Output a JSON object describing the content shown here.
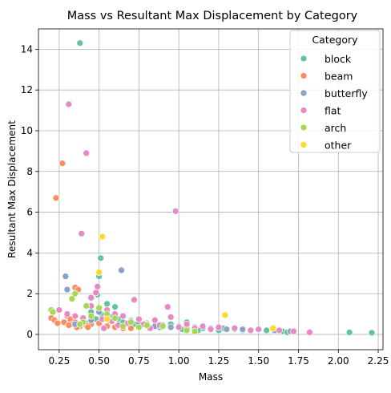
{
  "chart_data": {
    "type": "scatter",
    "title": "Mass vs Resultant Max Displacement by Category",
    "xlabel": "Mass",
    "ylabel": "Resultant Max Displacement",
    "xlim": [
      0.12,
      2.28
    ],
    "ylim": [
      -0.75,
      15.0
    ],
    "xticks": [
      0.25,
      0.5,
      0.75,
      1.0,
      1.25,
      1.5,
      1.75,
      2.0,
      2.25
    ],
    "xtick_labels": [
      "0.25",
      "0.50",
      "0.75",
      "1.00",
      "1.25",
      "1.50",
      "1.75",
      "2.00",
      "2.25"
    ],
    "yticks": [
      0,
      2,
      4,
      6,
      8,
      10,
      12,
      14
    ],
    "ytick_labels": [
      "0",
      "2",
      "4",
      "6",
      "8",
      "10",
      "12",
      "14"
    ],
    "grid": true,
    "legend": {
      "title": "Category",
      "placement": "top-right"
    },
    "series": [
      {
        "name": "block",
        "color": "#66c2a5",
        "points": [
          [
            0.38,
            14.3
          ],
          [
            0.51,
            3.75
          ],
          [
            0.5,
            2.85
          ],
          [
            0.49,
            1.95
          ],
          [
            0.55,
            1.5
          ],
          [
            0.6,
            1.35
          ],
          [
            0.45,
            1.1
          ],
          [
            0.52,
            0.95
          ],
          [
            0.58,
            0.85
          ],
          [
            0.62,
            0.75
          ],
          [
            0.7,
            0.7
          ],
          [
            0.75,
            0.6
          ],
          [
            0.8,
            0.55
          ],
          [
            0.85,
            0.45
          ],
          [
            0.9,
            0.4
          ],
          [
            0.95,
            0.5
          ],
          [
            1.0,
            0.4
          ],
          [
            1.05,
            0.6
          ],
          [
            1.1,
            0.3
          ],
          [
            1.15,
            0.3
          ],
          [
            1.2,
            0.25
          ],
          [
            1.28,
            0.3
          ],
          [
            1.35,
            0.25
          ],
          [
            1.4,
            0.2
          ],
          [
            1.45,
            0.2
          ],
          [
            1.55,
            0.2
          ],
          [
            1.6,
            0.15
          ],
          [
            1.65,
            0.15
          ],
          [
            1.68,
            0.1
          ],
          [
            2.07,
            0.1
          ],
          [
            2.21,
            0.08
          ],
          [
            0.35,
            0.6
          ],
          [
            0.42,
            0.55
          ],
          [
            0.65,
            0.6
          ],
          [
            0.72,
            0.5
          ],
          [
            0.88,
            0.35
          ],
          [
            1.02,
            0.25
          ],
          [
            1.12,
            0.2
          ],
          [
            1.25,
            0.2
          ],
          [
            0.48,
            0.75
          ],
          [
            0.57,
            0.65
          ]
        ]
      },
      {
        "name": "beam",
        "color": "#fc8d62",
        "points": [
          [
            0.27,
            8.4
          ],
          [
            0.23,
            6.7
          ],
          [
            0.35,
            2.3
          ],
          [
            0.37,
            2.2
          ],
          [
            0.25,
            1.2
          ],
          [
            0.3,
            0.9
          ],
          [
            0.32,
            0.75
          ],
          [
            0.35,
            0.6
          ],
          [
            0.4,
            0.5
          ],
          [
            0.42,
            0.45
          ],
          [
            0.45,
            0.5
          ],
          [
            0.5,
            0.55
          ],
          [
            0.2,
            0.8
          ],
          [
            0.22,
            0.7
          ],
          [
            0.28,
            0.6
          ],
          [
            0.33,
            0.5
          ],
          [
            0.38,
            0.4
          ],
          [
            0.43,
            0.35
          ],
          [
            0.55,
            0.4
          ],
          [
            0.6,
            0.35
          ],
          [
            0.65,
            0.3
          ],
          [
            0.7,
            0.3
          ],
          [
            0.24,
            0.55
          ],
          [
            0.31,
            0.45
          ],
          [
            0.36,
            0.35
          ]
        ]
      },
      {
        "name": "butterfly",
        "color": "#8da0cb",
        "points": [
          [
            0.29,
            2.85
          ],
          [
            0.3,
            2.2
          ],
          [
            0.64,
            3.15
          ],
          [
            0.5,
            1.1
          ],
          [
            0.55,
            0.9
          ],
          [
            0.6,
            0.8
          ],
          [
            0.7,
            0.65
          ],
          [
            0.8,
            0.5
          ],
          [
            0.9,
            0.45
          ],
          [
            1.0,
            0.4
          ],
          [
            1.1,
            0.35
          ],
          [
            1.2,
            0.3
          ],
          [
            1.4,
            0.25
          ],
          [
            1.6,
            0.2
          ],
          [
            1.7,
            0.15
          ],
          [
            0.45,
            0.7
          ],
          [
            0.35,
            0.5
          ],
          [
            0.75,
            0.55
          ],
          [
            0.85,
            0.4
          ],
          [
            0.95,
            0.35
          ],
          [
            1.05,
            0.3
          ],
          [
            1.3,
            0.25
          ],
          [
            0.4,
            0.6
          ]
        ]
      },
      {
        "name": "flat",
        "color": "#e78ac3",
        "points": [
          [
            0.31,
            11.3
          ],
          [
            0.42,
            8.9
          ],
          [
            0.39,
            4.95
          ],
          [
            0.98,
            6.05
          ],
          [
            0.48,
            2.05
          ],
          [
            0.49,
            2.35
          ],
          [
            0.45,
            1.8
          ],
          [
            0.72,
            1.7
          ],
          [
            0.93,
            1.35
          ],
          [
            0.55,
            1.2
          ],
          [
            0.6,
            1.0
          ],
          [
            0.65,
            0.9
          ],
          [
            0.75,
            0.75
          ],
          [
            0.85,
            0.7
          ],
          [
            0.95,
            0.85
          ],
          [
            1.05,
            0.5
          ],
          [
            1.15,
            0.4
          ],
          [
            1.25,
            0.35
          ],
          [
            1.35,
            0.3
          ],
          [
            1.5,
            0.25
          ],
          [
            1.63,
            0.2
          ],
          [
            1.72,
            0.15
          ],
          [
            1.82,
            0.1
          ],
          [
            0.25,
            1.2
          ],
          [
            0.3,
            1.0
          ],
          [
            0.35,
            0.9
          ],
          [
            0.4,
            0.8
          ],
          [
            0.52,
            0.75
          ],
          [
            0.58,
            0.65
          ],
          [
            0.68,
            0.55
          ],
          [
            0.78,
            0.5
          ],
          [
            0.88,
            0.45
          ],
          [
            1.0,
            0.35
          ],
          [
            1.1,
            0.3
          ],
          [
            1.2,
            0.25
          ],
          [
            0.45,
            1.4
          ],
          [
            0.62,
            0.45
          ],
          [
            0.82,
            0.3
          ],
          [
            1.45,
            0.2
          ],
          [
            0.53,
            0.3
          ]
        ]
      },
      {
        "name": "arch",
        "color": "#a6d854",
        "points": [
          [
            0.2,
            1.2
          ],
          [
            0.21,
            1.1
          ],
          [
            0.33,
            1.75
          ],
          [
            0.35,
            2.0
          ],
          [
            0.42,
            1.4
          ],
          [
            0.5,
            1.3
          ],
          [
            0.55,
            1.0
          ],
          [
            0.6,
            0.8
          ],
          [
            0.7,
            0.6
          ],
          [
            0.8,
            0.45
          ],
          [
            0.9,
            0.4
          ],
          [
            1.05,
            0.2
          ],
          [
            1.1,
            0.15
          ],
          [
            0.4,
            0.6
          ],
          [
            0.45,
            0.9
          ],
          [
            0.38,
            0.5
          ],
          [
            0.65,
            0.4
          ],
          [
            0.75,
            0.35
          ]
        ]
      },
      {
        "name": "other",
        "color": "#ffd92f",
        "points": [
          [
            0.52,
            4.8
          ],
          [
            0.5,
            3.05
          ],
          [
            1.29,
            0.95
          ],
          [
            1.59,
            0.3
          ],
          [
            0.55,
            0.75
          ]
        ]
      }
    ]
  }
}
